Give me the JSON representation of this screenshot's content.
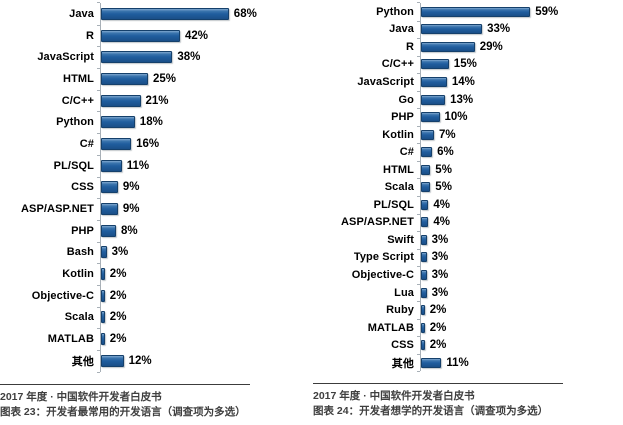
{
  "page": {
    "background": "#ffffff",
    "bar_color": "#1F5C9E",
    "axis_color": "#A8B0B7",
    "caption_color": "#3F3F3F"
  },
  "chart_data": [
    {
      "type": "bar",
      "orientation": "horizontal",
      "title": "",
      "value_suffix": "%",
      "grid": false,
      "legend": false,
      "bar_color": "#1F5C9E",
      "categories": [
        "Java",
        "R",
        "JavaScript",
        "HTML",
        "C/C++",
        "Python",
        "C#",
        "PL/SQL",
        "CSS",
        "ASP/ASP.NET",
        "PHP",
        "Bash",
        "Kotlin",
        "Objective-C",
        "Scala",
        "MATLAB",
        "其他"
      ],
      "values": [
        68,
        42,
        38,
        25,
        21,
        18,
        16,
        11,
        9,
        9,
        8,
        3,
        2,
        2,
        2,
        2,
        12
      ],
      "source_line": "2017 年度 · 中国软件开发者白皮书",
      "caption": "图表 23：开发者最常用的开发语言（调查项为多选）"
    },
    {
      "type": "bar",
      "orientation": "horizontal",
      "title": "",
      "value_suffix": "%",
      "grid": false,
      "legend": false,
      "bar_color": "#1F5C9E",
      "categories": [
        "Python",
        "Java",
        "R",
        "C/C++",
        "JavaScript",
        "Go",
        "PHP",
        "Kotlin",
        "C#",
        "HTML",
        "Scala",
        "PL/SQL",
        "ASP/ASP.NET",
        "Swift",
        "Type Script",
        "Objective-C",
        "Lua",
        "Ruby",
        "MATLAB",
        "CSS",
        "其他"
      ],
      "values": [
        59,
        33,
        29,
        15,
        14,
        13,
        10,
        7,
        6,
        5,
        5,
        4,
        4,
        3,
        3,
        3,
        3,
        2,
        2,
        2,
        11
      ],
      "source_line": "2017 年度 · 中国软件开发者白皮书",
      "caption": "图表 24：开发者想学的开发语言（调查项为多选）"
    }
  ]
}
